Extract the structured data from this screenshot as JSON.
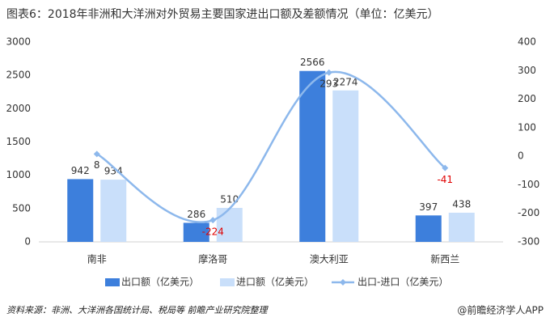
{
  "chart_data": {
    "type": "bar-line",
    "title": "图表6：2018年非洲和大洋洲对外贸易主要国家进出口额及差额情况（单位：亿美元）",
    "categories": [
      "南非",
      "摩洛哥",
      "澳大利亚",
      "新西兰"
    ],
    "series": [
      {
        "name": "出口额（亿美元）",
        "type": "bar",
        "color": "#3d7fdc",
        "values": [
          942,
          286,
          2566,
          397
        ]
      },
      {
        "name": "进口额（亿美元）",
        "type": "bar",
        "color": "#c9dffa",
        "values": [
          934,
          510,
          2274,
          438
        ]
      },
      {
        "name": "出口-进口（亿美元）",
        "type": "line",
        "axis": "y2",
        "color": "#8db8ec",
        "negative_label_color": "#e00000",
        "values": [
          8,
          -224,
          293,
          -41
        ]
      }
    ],
    "ylim": [
      0,
      3000
    ],
    "yticks": [
      0,
      500,
      1000,
      1500,
      2000,
      2500,
      3000
    ],
    "y2lim": [
      -300,
      400
    ],
    "y2ticks": [
      -300,
      -200,
      -100,
      0,
      100,
      200,
      300,
      400
    ],
    "legend": "bottom",
    "source": "资料来源：非洲、大洋洲各国统计局、税局等 前瞻产业研究院整理",
    "credit": "@前瞻经济学人APP"
  }
}
